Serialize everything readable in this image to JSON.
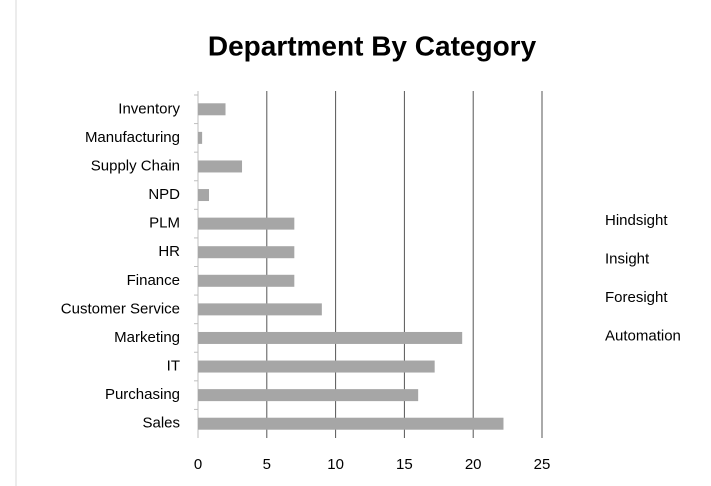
{
  "chart_data": {
    "type": "bar",
    "orientation": "horizontal",
    "title": "Department By Category",
    "categories": [
      "Inventory",
      "Manufacturing",
      "Supply Chain",
      "NPD",
      "PLM",
      "HR",
      "Finance",
      "Customer Service",
      "Marketing",
      "IT",
      "Purchasing",
      "Sales"
    ],
    "values": [
      2,
      0.3,
      3.2,
      0.8,
      7,
      7,
      7,
      9,
      19.2,
      17.2,
      16,
      22.2
    ],
    "color": "#a6a6a6",
    "legend": [
      "Hindsight",
      "Insight",
      "Foresight",
      "Automation"
    ],
    "xlim": [
      0,
      25
    ],
    "xticks": [
      0,
      5,
      10,
      15,
      20,
      25
    ],
    "grid": true
  }
}
